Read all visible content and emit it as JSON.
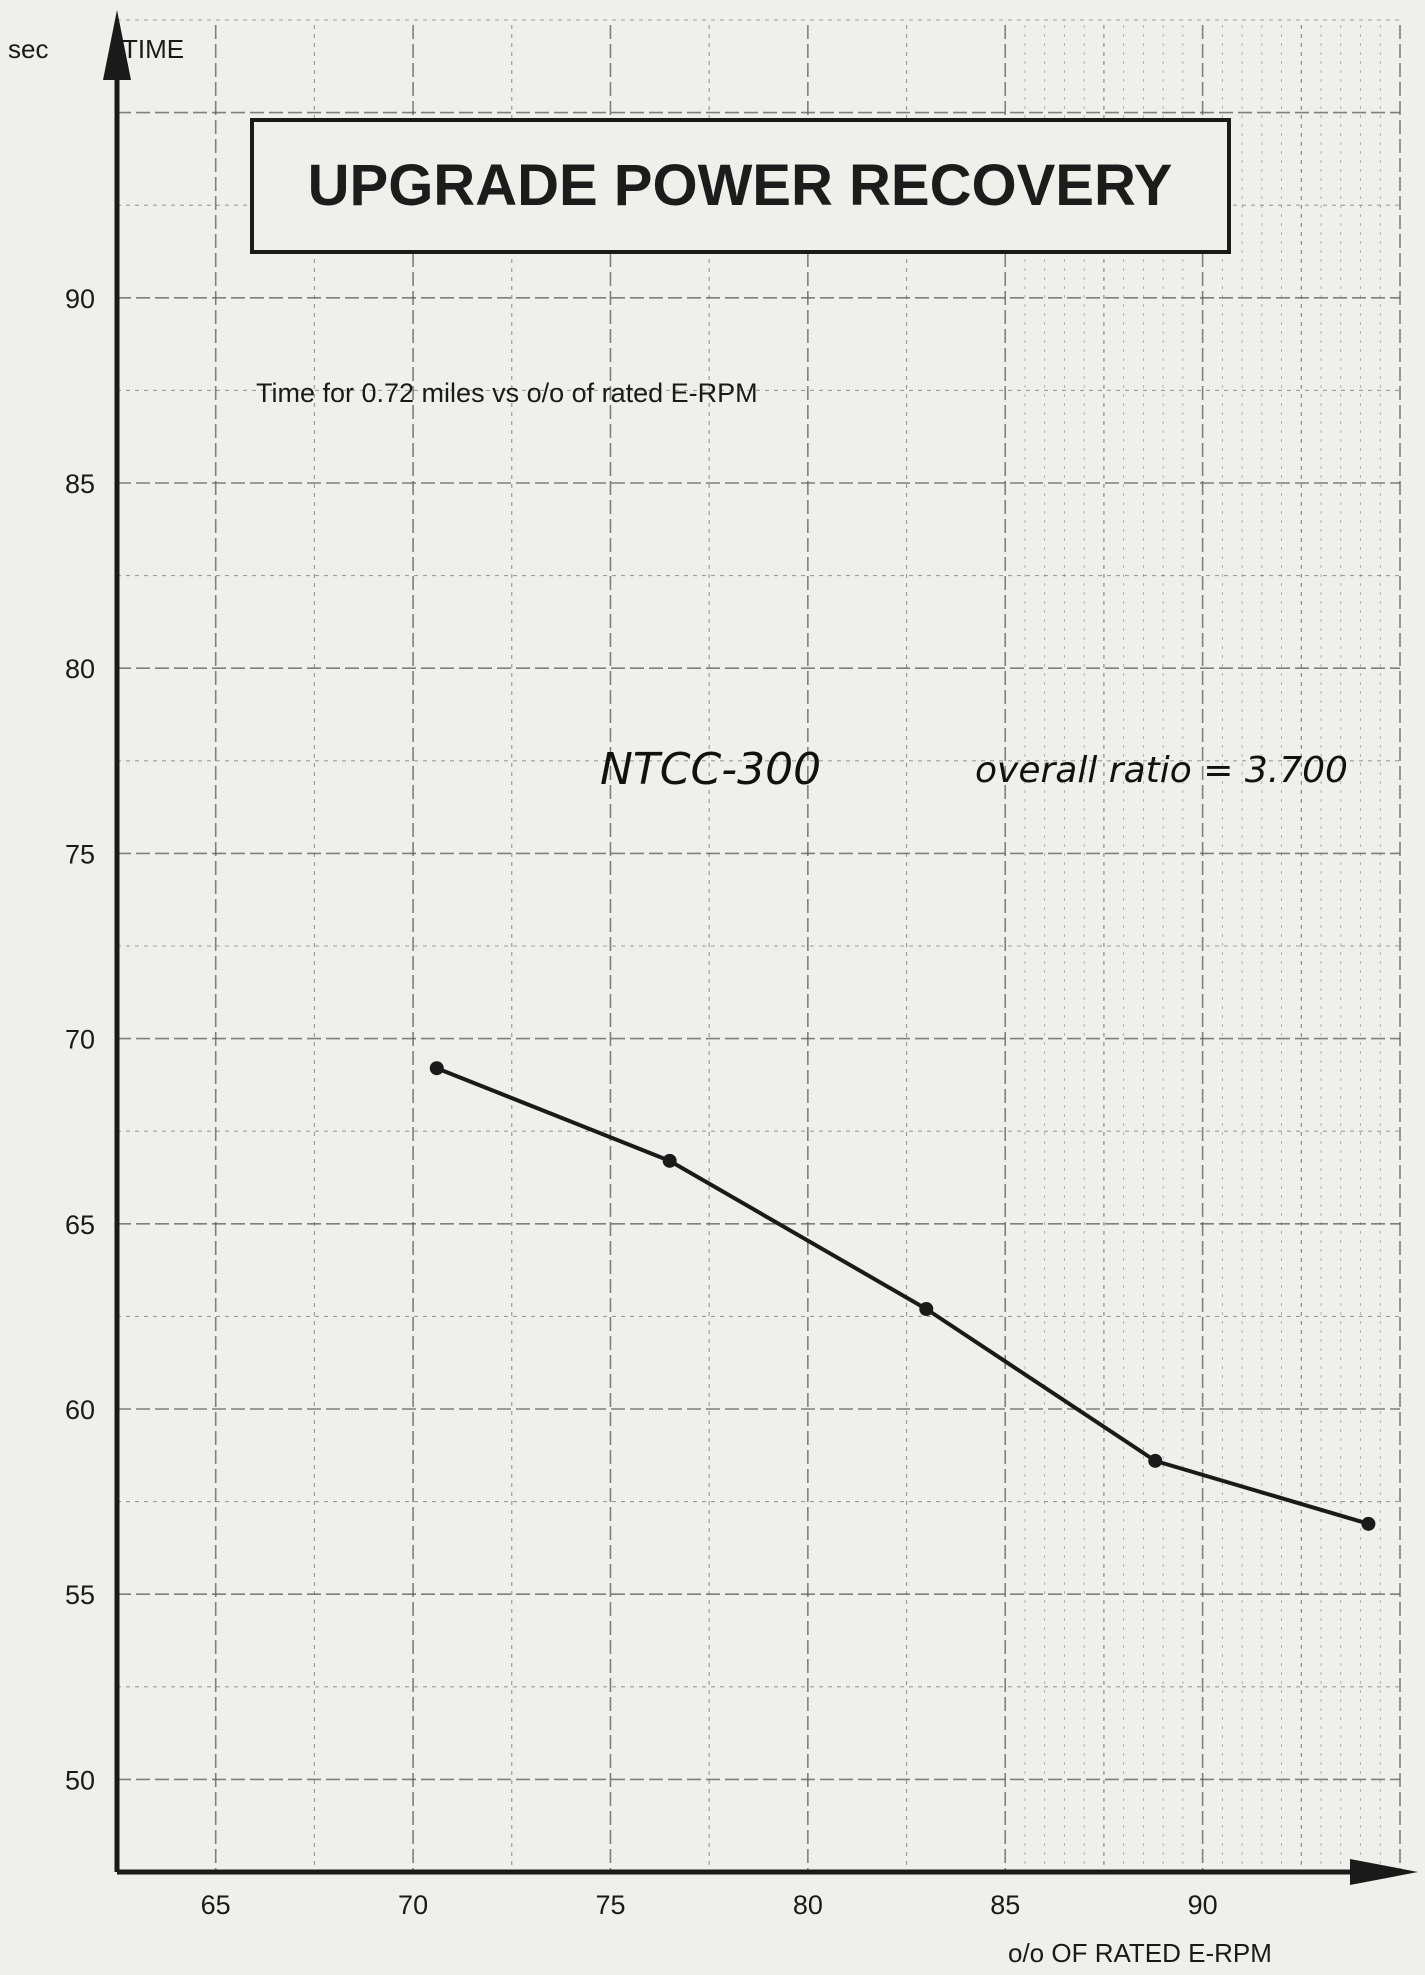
{
  "chart_data": {
    "type": "line",
    "title": "UPGRADE POWER RECOVERY",
    "subtitle": "Time for 0.72 miles vs o/o of rated E-RPM",
    "ylabel_unit": "sec",
    "ylabel": "TIME",
    "xlabel": "o/o OF RATED E-RPM",
    "annotations": [
      "NTCC-300",
      "overall ratio = 3.700"
    ],
    "xlim": [
      62.5,
      95
    ],
    "ylim": [
      47.5,
      97.5
    ],
    "xticks": [
      65,
      70,
      75,
      80,
      85,
      90
    ],
    "yticks": [
      50,
      55,
      60,
      65,
      70,
      75,
      80,
      85,
      90
    ],
    "grid": true,
    "series": [
      {
        "x": [
          70.6,
          76.5,
          83.0,
          88.8,
          94.2
        ],
        "y": [
          69.2,
          66.7,
          62.7,
          58.6,
          56.9
        ]
      }
    ]
  },
  "colors": {
    "paper": "#efefec",
    "ink": "#1a1a1a",
    "grid": "#5a5a5a"
  }
}
